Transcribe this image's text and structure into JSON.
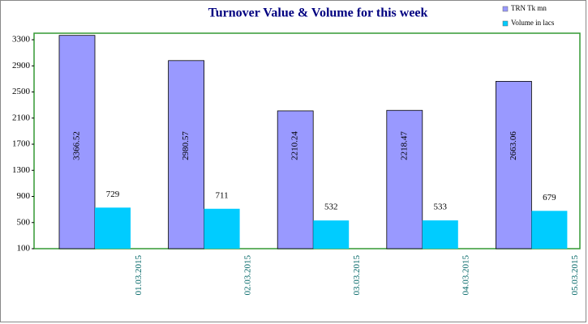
{
  "chart_data": {
    "type": "bar",
    "title": "Turnover Value & Volume for this week",
    "categories": [
      "01.03.2015",
      "02.03.2015",
      "03.03.2015",
      "04.03.2015",
      "05.03.2015"
    ],
    "series": [
      {
        "name": "TRN Tk mn",
        "color": "#9999ff",
        "values": [
          3366.52,
          2980.57,
          2210.24,
          2218.47,
          2663.06
        ]
      },
      {
        "name": "Volume in lacs",
        "color": "#00ccff",
        "values": [
          729,
          711,
          532,
          533,
          679
        ]
      }
    ],
    "ylim": [
      100,
      3400
    ],
    "yticks": [
      100,
      500,
      900,
      1300,
      1700,
      2100,
      2500,
      2900,
      3300
    ],
    "legend": "top-right"
  }
}
